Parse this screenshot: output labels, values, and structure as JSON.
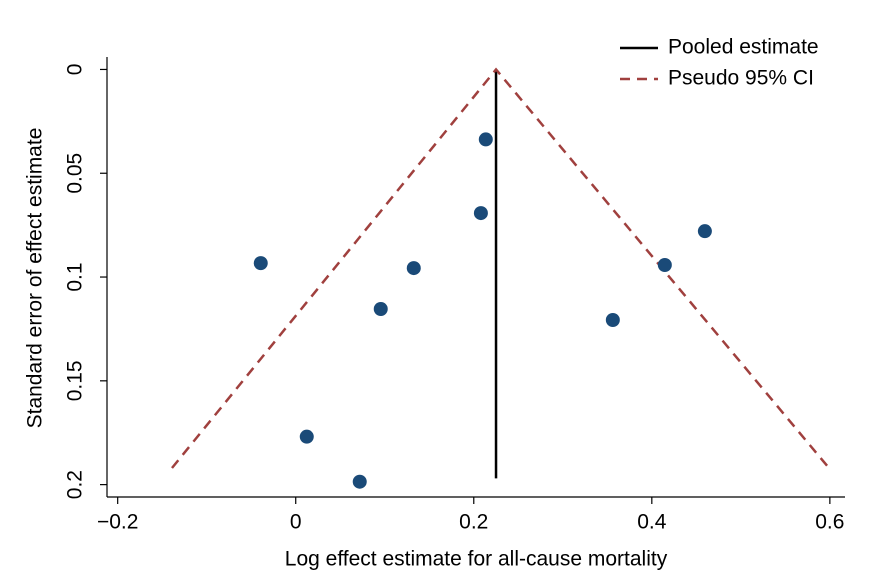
{
  "chart_data": {
    "type": "funnel",
    "xlabel": "Log effect estimate for all-cause mortality",
    "ylabel": "Standard error of effect estimate",
    "xlim": [
      -0.212,
      0.617
    ],
    "ylim": [
      -0.006,
      0.205
    ],
    "y_inverted": true,
    "xticks": [
      {
        "value": -0.2,
        "label": "−0.2"
      },
      0,
      0.2,
      0.4,
      0.6
    ],
    "yticks": [
      0,
      0.05,
      0.1,
      0.15,
      0.2
    ],
    "series": [
      {
        "name": "Pooled estimate",
        "color": "#000000",
        "style": "solid",
        "x": [
          0.225,
          0.225
        ],
        "y": [
          0,
          0.197
        ]
      },
      {
        "name": "Pseudo 95% CI",
        "color": "#a0403e",
        "style": "dashed",
        "x": [
          -0.139,
          0.225,
          0.599
        ],
        "y": [
          0.192,
          0,
          0.192
        ]
      }
    ],
    "points": {
      "color": "#1a4a78",
      "x": [
        0.2135,
        0.208,
        0.4596,
        -0.0393,
        0.1326,
        0.4146,
        0.0955,
        0.3562,
        0.0124,
        0.0719
      ],
      "y": [
        0.0337,
        0.0692,
        0.0779,
        0.0933,
        0.0957,
        0.0942,
        0.1154,
        0.1207,
        0.1769,
        0.1986
      ]
    },
    "legend": "top-right"
  }
}
